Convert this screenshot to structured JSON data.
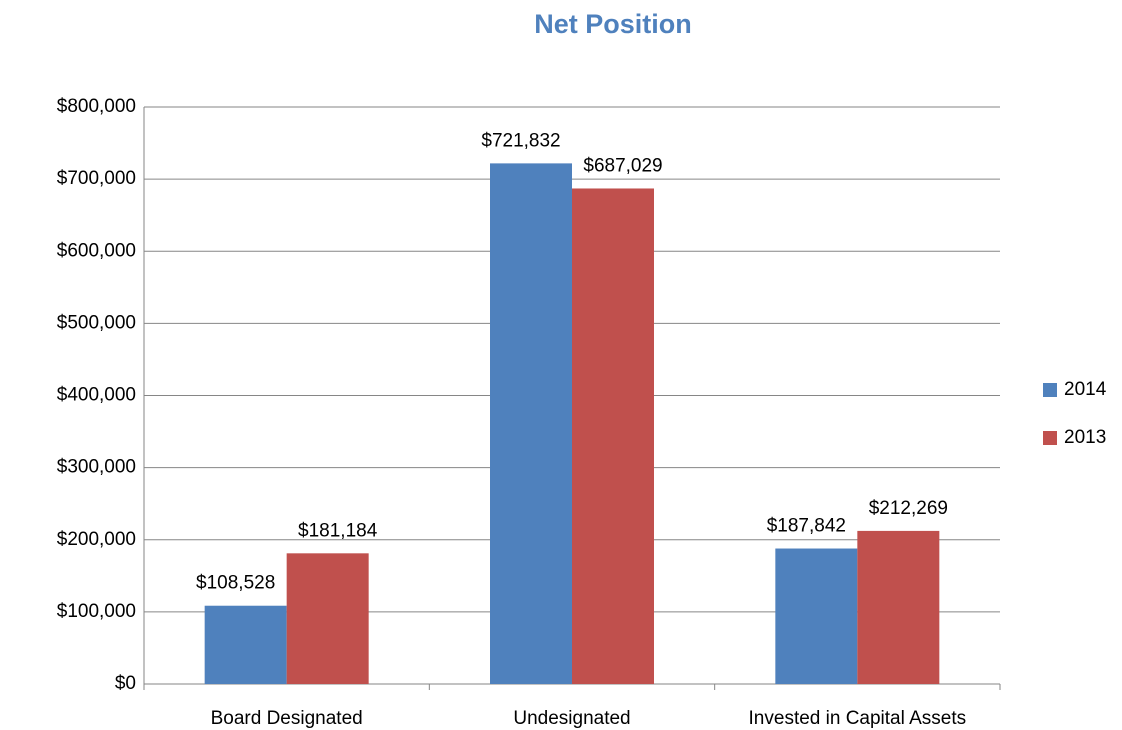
{
  "chart_data": {
    "type": "bar",
    "title": "Net Position",
    "categories": [
      "Board Designated",
      "Undesignated",
      "Invested in Capital Assets"
    ],
    "series": [
      {
        "name": "2014",
        "color": "#4f81bd",
        "values": [
          108528,
          721832,
          187842
        ],
        "value_labels": [
          "$108,528",
          "$721,832",
          "$187,842"
        ]
      },
      {
        "name": "2013",
        "color": "#c0504d",
        "values": [
          181184,
          687029,
          212269
        ],
        "value_labels": [
          "$181,184",
          "$687,029",
          "$212,269"
        ]
      }
    ],
    "ylim": [
      0,
      800000
    ],
    "yticks": [
      {
        "value": 0,
        "label": "$0"
      },
      {
        "value": 100000,
        "label": "$100,000"
      },
      {
        "value": 200000,
        "label": "$200,000"
      },
      {
        "value": 300000,
        "label": "$300,000"
      },
      {
        "value": 400000,
        "label": "$400,000"
      },
      {
        "value": 500000,
        "label": "$500,000"
      },
      {
        "value": 600000,
        "label": "$600,000"
      },
      {
        "value": 700000,
        "label": "$700,000"
      },
      {
        "value": 800000,
        "label": "$800,000"
      }
    ],
    "grid": true,
    "legend": "right"
  }
}
